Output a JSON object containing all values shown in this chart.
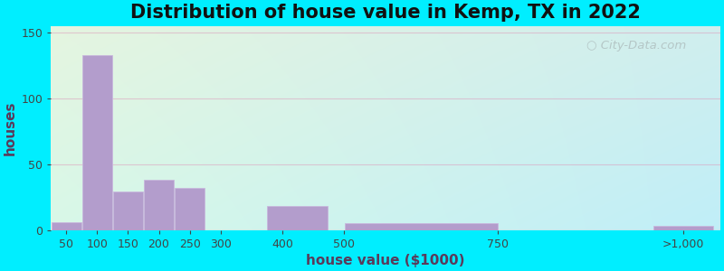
{
  "title": "Distribution of house value in Kemp, TX in 2022",
  "xlabel": "house value ($1000)",
  "ylabel": "houses",
  "bar_positions": [
    50,
    100,
    150,
    200,
    250,
    350,
    450,
    625,
    875,
    1050
  ],
  "bar_lefts": [
    25,
    75,
    125,
    175,
    225,
    300,
    375,
    500,
    750,
    1000
  ],
  "bar_widths": [
    50,
    50,
    50,
    50,
    50,
    100,
    100,
    250,
    250,
    100
  ],
  "bar_heights": [
    6,
    133,
    29,
    38,
    32,
    0,
    18,
    5,
    0,
    3
  ],
  "bar_color": "#b39dcc",
  "bar_edgecolor": "#c8b8dd",
  "xlim": [
    25,
    1110
  ],
  "ylim": [
    0,
    155
  ],
  "yticks": [
    0,
    50,
    100,
    150
  ],
  "xtick_labels": [
    "50",
    "100",
    "150",
    "200",
    "250",
    "300",
    "400",
    "500",
    "750",
    ">1,000"
  ],
  "xtick_positions": [
    50,
    100,
    150,
    200,
    250,
    300,
    400,
    500,
    750,
    1050
  ],
  "bg_outer": "#00eeff",
  "bg_plot_topleft": "#e5f5e0",
  "bg_plot_topright": "#d0eeee",
  "bg_plot_bottomleft": "#d8f8e8",
  "bg_plot_bottomright": "#c0eef8",
  "grid_color": "#dd99bb",
  "grid_alpha": 0.5,
  "title_fontsize": 15,
  "axis_label_fontsize": 11,
  "tick_fontsize": 9,
  "watermark_text": "City-Data.com"
}
